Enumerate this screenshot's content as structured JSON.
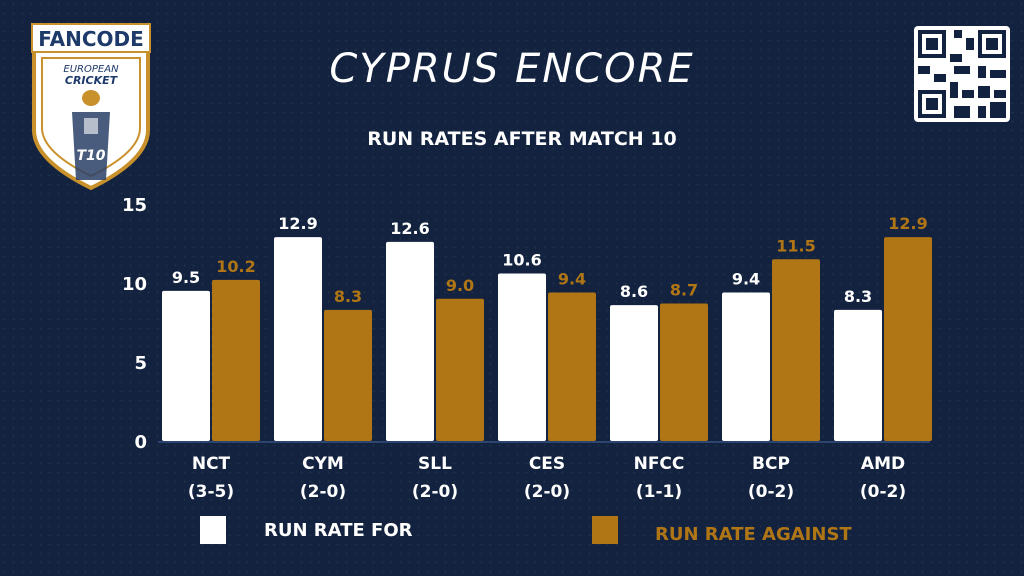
{
  "logo": {
    "brand": "FANCODE",
    "line1": "EUROPEAN",
    "line2": "CRICKET",
    "badge": "T10"
  },
  "header": {
    "title": "CYPRUS ENCORE",
    "subtitle": "RUN RATES AFTER MATCH 10"
  },
  "colors": {
    "background": "#13233f",
    "for": "#ffffff",
    "against": "#b07515",
    "axis": "#ffffff"
  },
  "icons": {
    "qr": "qr-code-icon"
  },
  "chart_data": {
    "type": "bar",
    "title": "RUN RATES AFTER MATCH 10",
    "categories": [
      "NCT",
      "CYM",
      "SLL",
      "CES",
      "NFCC",
      "BCP",
      "AMD"
    ],
    "category_records": [
      "(3-5)",
      "(2-0)",
      "(2-0)",
      "(2-0)",
      "(1-1)",
      "(0-2)",
      "(0-2)"
    ],
    "series": [
      {
        "name": "RUN RATE FOR",
        "values": [
          9.5,
          12.9,
          12.6,
          10.6,
          8.6,
          9.4,
          8.3
        ]
      },
      {
        "name": "RUN RATE AGAINST",
        "values": [
          10.2,
          8.3,
          9.0,
          9.4,
          8.7,
          11.5,
          12.9
        ]
      }
    ],
    "data_labels": [
      [
        "9.5",
        "12.9",
        "12.6",
        "10.6",
        "8.6",
        "9.4",
        "8.3"
      ],
      [
        "10.2",
        "8.3",
        "9.0",
        "9.4",
        "8.7",
        "11.5",
        "12.9"
      ]
    ],
    "yticks": [
      0,
      5,
      10,
      15
    ],
    "ylim": [
      0,
      15
    ],
    "grid": false,
    "legend": "bottom"
  }
}
